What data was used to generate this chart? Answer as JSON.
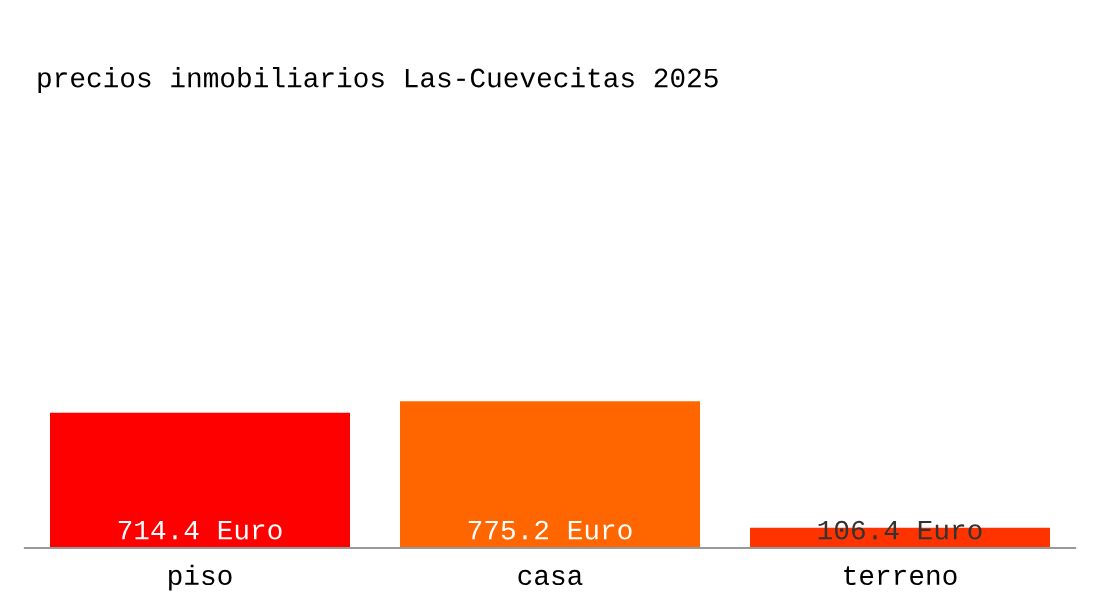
{
  "chart_data": {
    "type": "bar",
    "title": "precios inmobiliarios Las-Cuevecitas 2025",
    "categories": [
      "piso",
      "casa",
      "terreno"
    ],
    "values": [
      714.4,
      775.2,
      106.4
    ],
    "colors": [
      "#ff0000",
      "#ff6600",
      "#ff3300"
    ],
    "value_labels": [
      "714.4 Euro",
      "775.2 Euro",
      "106.4 Euro"
    ],
    "grid": false,
    "legend": false
  }
}
